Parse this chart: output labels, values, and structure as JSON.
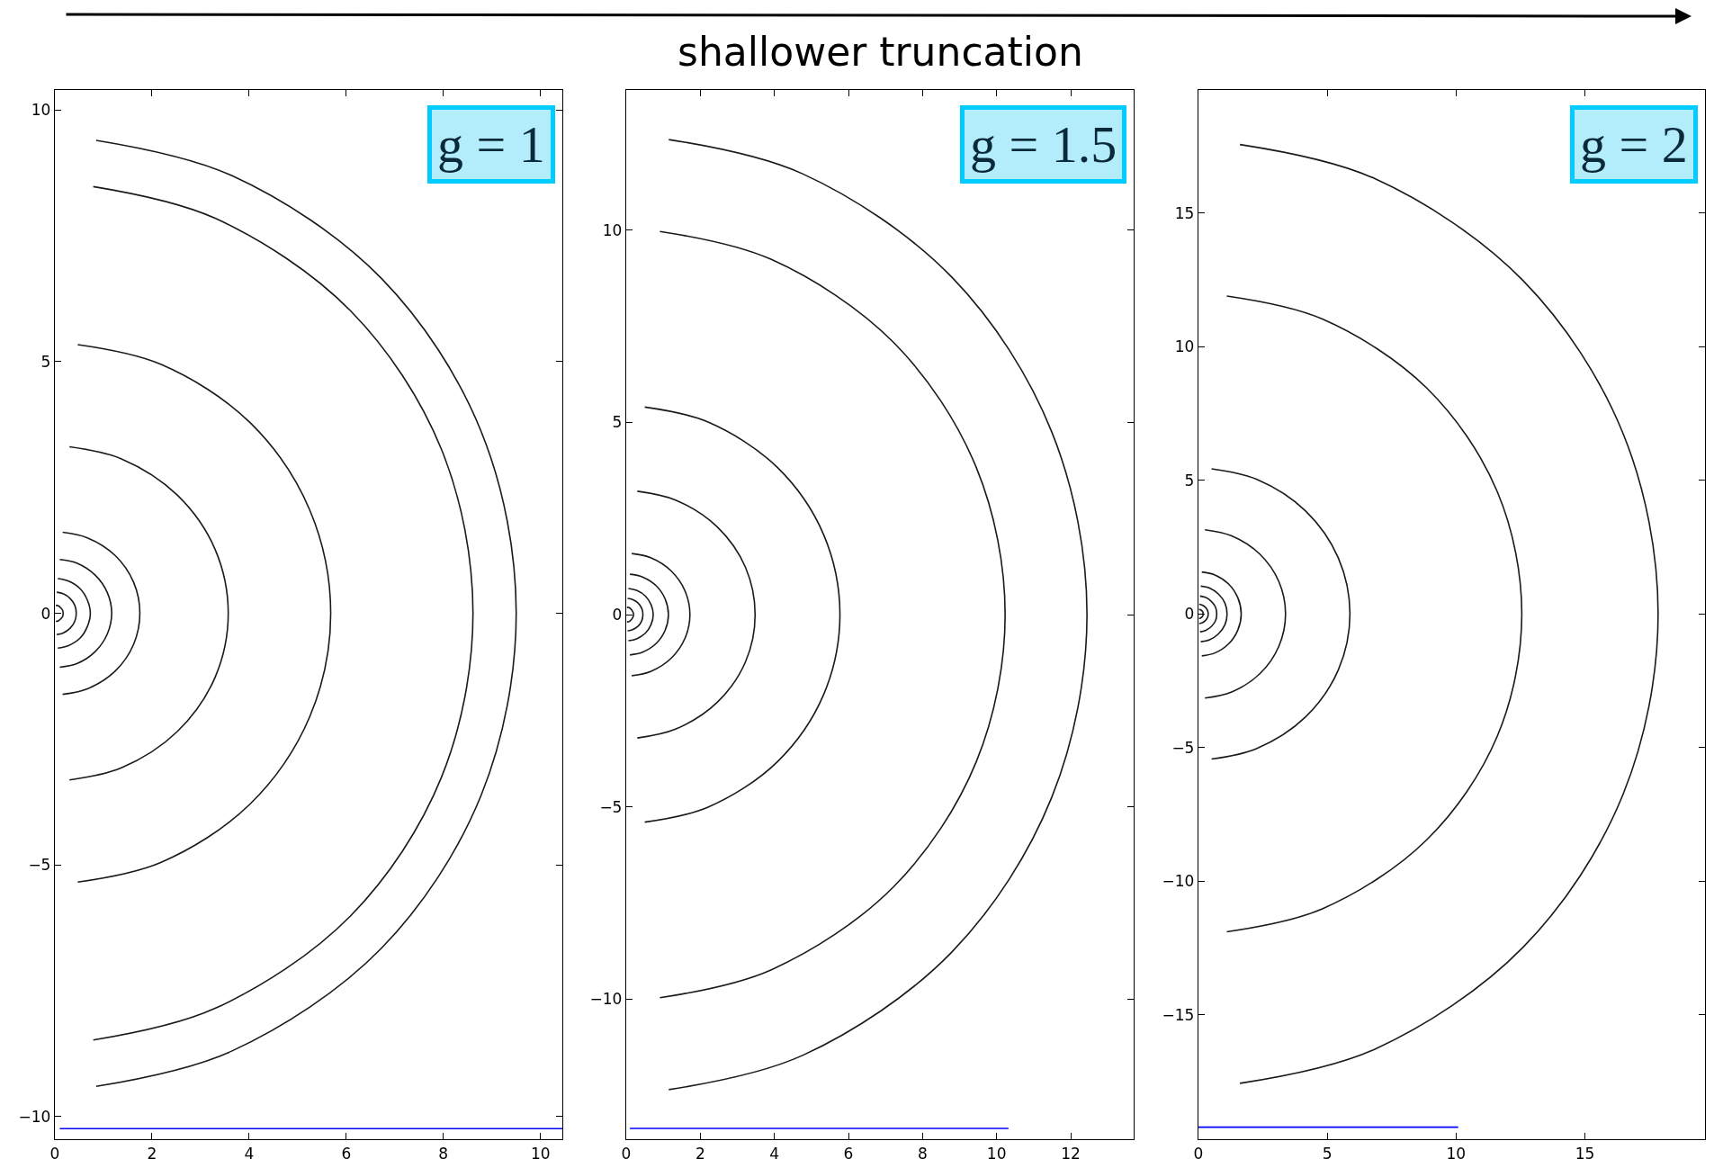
{
  "chart_data": [
    {
      "type": "line",
      "annotations": [
        "g = 1"
      ],
      "xlim": [
        0,
        10.45
      ],
      "ylim": [
        -10.45,
        10.4
      ],
      "xticks": [
        0,
        2,
        4,
        6,
        8,
        10
      ],
      "yticks": [
        -10,
        -5,
        0,
        5,
        10
      ],
      "series": [
        {
          "color": "#1a1a1a",
          "x": [
            0.85,
            3.64,
            6.72,
            8.78,
            9.5,
            8.78,
            6.72,
            3.64,
            0.85
          ],
          "values": [
            9.4,
            8.7,
            6.66,
            3.61,
            0,
            -3.61,
            -6.66,
            -8.7,
            -9.4
          ]
        },
        {
          "color": "#1a1a1a",
          "x": [
            0.79,
            3.3,
            6.09,
            7.96,
            8.61,
            7.96,
            6.09,
            3.3,
            0.79
          ],
          "values": [
            8.48,
            7.85,
            6.01,
            3.26,
            0,
            -3.26,
            -6.01,
            -7.85,
            -8.48
          ]
        },
        {
          "color": "#1a1a1a",
          "x": [
            0.47,
            2.18,
            4.02,
            5.25,
            5.68,
            5.25,
            4.02,
            2.18,
            0.47
          ],
          "values": [
            5.34,
            4.95,
            3.79,
            2.05,
            0,
            -2.05,
            -3.79,
            -4.95,
            -5.34
          ]
        },
        {
          "color": "#1a1a1a",
          "x": [
            0.3,
            1.37,
            2.52,
            3.3,
            3.57,
            3.3,
            2.52,
            1.37,
            0.3
          ],
          "values": [
            3.31,
            3.07,
            2.35,
            1.27,
            0,
            -1.27,
            -2.35,
            -3.07,
            -3.31
          ]
        },
        {
          "color": "#1a1a1a",
          "x": [
            0.16,
            0.67,
            1.24,
            1.62,
            1.75,
            1.62,
            1.24,
            0.67,
            0.16
          ],
          "values": [
            1.61,
            1.5,
            1.15,
            0.62,
            0,
            -0.62,
            -1.15,
            -1.5,
            -1.61
          ]
        },
        {
          "color": "#1a1a1a",
          "x": [
            0.1,
            0.45,
            0.83,
            1.08,
            1.17,
            1.08,
            0.83,
            0.45,
            0.1
          ],
          "values": [
            1.07,
            1.0,
            0.76,
            0.41,
            0,
            -0.41,
            -0.76,
            -1.0,
            -1.07
          ]
        },
        {
          "color": "#1a1a1a",
          "x": [
            0.06,
            0.28,
            0.52,
            0.67,
            0.73,
            0.67,
            0.52,
            0.28,
            0.06
          ],
          "values": [
            0.69,
            0.64,
            0.49,
            0.26,
            0,
            -0.26,
            -0.49,
            -0.64,
            -0.69
          ]
        },
        {
          "color": "#1a1a1a",
          "x": [
            0.04,
            0.17,
            0.31,
            0.41,
            0.44,
            0.41,
            0.31,
            0.17,
            0.04
          ],
          "values": [
            0.42,
            0.39,
            0.3,
            0.16,
            0,
            -0.16,
            -0.3,
            -0.39,
            -0.42
          ]
        },
        {
          "color": "#1a1a1a",
          "x": [
            0.02,
            0.07,
            0.12,
            0.16,
            0.17,
            0.16,
            0.12,
            0.07,
            0.02
          ],
          "values": [
            0.16,
            0.15,
            0.11,
            0.06,
            0,
            -0.06,
            -0.11,
            -0.15,
            -0.16
          ]
        },
        {
          "color": "#0000ff",
          "x": [
            0.1,
            10.45
          ],
          "values": [
            -10.24,
            -10.24
          ]
        }
      ]
    },
    {
      "type": "line",
      "title": "shallower truncation",
      "annotations": [
        "g = 1.5"
      ],
      "xlim": [
        0,
        13.7
      ],
      "ylim": [
        -13.65,
        13.65
      ],
      "xticks": [
        0,
        2,
        4,
        6,
        8,
        10,
        12
      ],
      "yticks": [
        -10,
        -5,
        0,
        5,
        10
      ],
      "series": [
        {
          "color": "#1a1a1a",
          "x": [
            1.15,
            4.76,
            8.8,
            11.49,
            12.44,
            11.49,
            8.8,
            4.76,
            1.15
          ],
          "values": [
            12.36,
            11.47,
            8.77,
            4.75,
            0,
            -4.75,
            -8.77,
            -11.47,
            -12.36
          ]
        },
        {
          "color": "#1a1a1a",
          "x": [
            0.91,
            3.92,
            7.23,
            9.45,
            10.23,
            9.45,
            7.23,
            3.92,
            0.91
          ],
          "values": [
            9.97,
            9.24,
            7.07,
            3.83,
            0,
            -3.83,
            -7.07,
            -9.24,
            -9.97
          ]
        },
        {
          "color": "#1a1a1a",
          "x": [
            0.5,
            2.21,
            4.08,
            5.33,
            5.77,
            5.33,
            4.08,
            2.21,
            0.5
          ],
          "values": [
            5.4,
            5.01,
            3.83,
            2.08,
            0,
            -2.08,
            -3.83,
            -5.01,
            -5.4
          ]
        },
        {
          "color": "#1a1a1a",
          "x": [
            0.3,
            1.33,
            2.46,
            3.22,
            3.48,
            3.22,
            2.46,
            1.33,
            0.3
          ],
          "values": [
            3.21,
            2.98,
            2.28,
            1.23,
            0,
            -1.23,
            -2.28,
            -2.98,
            -3.21
          ]
        },
        {
          "color": "#1a1a1a",
          "x": [
            0.15,
            0.66,
            1.22,
            1.59,
            1.72,
            1.59,
            1.22,
            0.66,
            0.15
          ],
          "values": [
            1.59,
            1.48,
            1.13,
            0.61,
            0,
            -0.61,
            -1.13,
            -1.48,
            -1.59
          ]
        },
        {
          "color": "#1a1a1a",
          "x": [
            0.1,
            0.44,
            0.81,
            1.05,
            1.14,
            1.05,
            0.81,
            0.44,
            0.1
          ],
          "values": [
            1.05,
            0.98,
            0.75,
            0.41,
            0,
            -0.41,
            -0.75,
            -0.98,
            -1.05
          ]
        },
        {
          "color": "#1a1a1a",
          "x": [
            0.06,
            0.28,
            0.52,
            0.67,
            0.73,
            0.67,
            0.52,
            0.28,
            0.06
          ],
          "values": [
            0.68,
            0.63,
            0.48,
            0.26,
            0,
            -0.26,
            -0.48,
            -0.63,
            -0.68
          ]
        },
        {
          "color": "#1a1a1a",
          "x": [
            0.04,
            0.17,
            0.32,
            0.42,
            0.45,
            0.42,
            0.32,
            0.17,
            0.04
          ],
          "values": [
            0.42,
            0.39,
            0.3,
            0.16,
            0,
            -0.16,
            -0.3,
            -0.39,
            -0.42
          ]
        },
        {
          "color": "#1a1a1a",
          "x": [
            0.02,
            0.08,
            0.14,
            0.18,
            0.2,
            0.18,
            0.14,
            0.08,
            0.02
          ],
          "values": [
            0.19,
            0.18,
            0.13,
            0.07,
            0,
            -0.07,
            -0.13,
            -0.18,
            -0.19
          ]
        },
        {
          "color": "#0000ff",
          "x": [
            0.1,
            10.32
          ],
          "values": [
            -13.37,
            -13.37
          ]
        }
      ]
    },
    {
      "type": "line",
      "annotations": [
        "g = 2"
      ],
      "xlim": [
        0,
        19.66
      ],
      "ylim": [
        -19.65,
        19.6
      ],
      "xticks": [
        0,
        5,
        10,
        15
      ],
      "yticks": [
        -15,
        -10,
        -5,
        0,
        5,
        10,
        15
      ],
      "series": [
        {
          "color": "#1a1a1a",
          "x": [
            1.61,
            6.83,
            12.61,
            16.48,
            17.84,
            16.48,
            12.61,
            6.83,
            1.61
          ],
          "values": [
            17.56,
            16.29,
            12.46,
            6.75,
            0,
            -6.75,
            -12.46,
            -16.29,
            -17.56
          ]
        },
        {
          "color": "#1a1a1a",
          "x": [
            1.1,
            4.81,
            8.87,
            11.6,
            12.55,
            11.6,
            8.87,
            4.81,
            1.1
          ],
          "values": [
            11.89,
            11.03,
            8.44,
            4.57,
            0,
            -4.57,
            -8.44,
            -11.03,
            -11.89
          ]
        },
        {
          "color": "#1a1a1a",
          "x": [
            0.51,
            2.25,
            4.16,
            5.43,
            5.88,
            5.43,
            4.16,
            2.25,
            0.51
          ],
          "values": [
            5.43,
            5.04,
            3.85,
            2.09,
            0,
            -2.09,
            -3.85,
            -5.04,
            -5.43
          ]
        },
        {
          "color": "#1a1a1a",
          "x": [
            0.25,
            1.29,
            2.39,
            3.12,
            3.38,
            3.12,
            2.39,
            1.29,
            0.25
          ],
          "values": [
            3.15,
            2.92,
            2.23,
            1.21,
            0,
            -1.21,
            -2.23,
            -2.92,
            -3.15
          ]
        },
        {
          "color": "#1a1a1a",
          "x": [
            0.13,
            0.64,
            1.17,
            1.53,
            1.66,
            1.53,
            1.17,
            0.64,
            0.13
          ],
          "values": [
            1.57,
            1.46,
            1.12,
            0.6,
            0,
            -0.6,
            -1.12,
            -1.46,
            -1.57
          ]
        },
        {
          "color": "#1a1a1a",
          "x": [
            0.09,
            0.43,
            0.78,
            1.03,
            1.11,
            1.03,
            0.78,
            0.43,
            0.09
          ],
          "values": [
            1.04,
            0.97,
            0.74,
            0.4,
            0,
            -0.4,
            -0.74,
            -0.97,
            -1.04
          ]
        },
        {
          "color": "#1a1a1a",
          "x": [
            0.06,
            0.27,
            0.5,
            0.66,
            0.71,
            0.66,
            0.5,
            0.27,
            0.06
          ],
          "values": [
            0.67,
            0.62,
            0.47,
            0.26,
            0,
            -0.26,
            -0.47,
            -0.62,
            -0.67
          ]
        },
        {
          "color": "#1a1a1a",
          "x": [
            0.03,
            0.15,
            0.27,
            0.35,
            0.38,
            0.35,
            0.27,
            0.15,
            0.03
          ],
          "values": [
            0.36,
            0.33,
            0.25,
            0.14,
            0,
            -0.14,
            -0.25,
            -0.33,
            -0.36
          ]
        },
        {
          "color": "#1a1a1a",
          "x": [
            0.02,
            0.07,
            0.13,
            0.17,
            0.18,
            0.17,
            0.13,
            0.07,
            0.02
          ],
          "values": [
            0.17,
            0.16,
            0.12,
            0.07,
            0,
            -0.07,
            -0.12,
            -0.16,
            -0.17
          ]
        },
        {
          "color": "#0000ff",
          "x": [
            0,
            10.08
          ],
          "values": [
            -19.2,
            -19.2
          ]
        }
      ]
    }
  ]
}
